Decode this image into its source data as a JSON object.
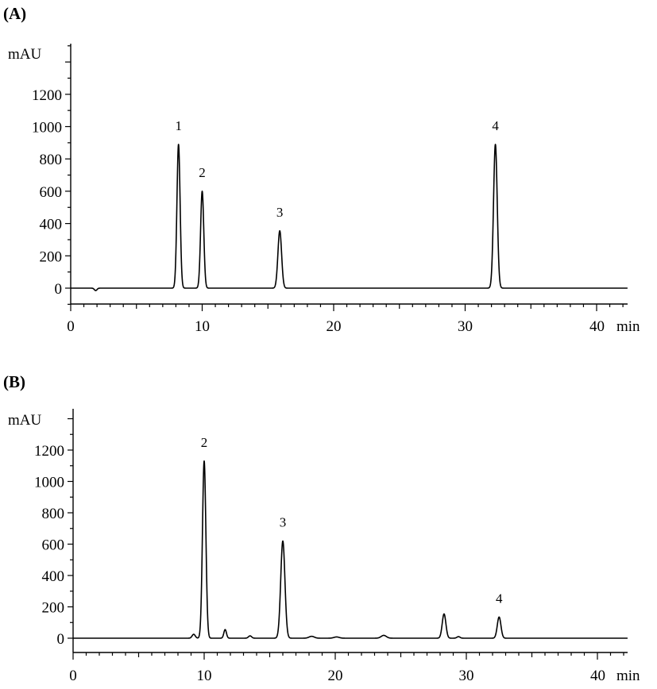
{
  "chart_data": [
    {
      "type": "line",
      "panel_label": "(A)",
      "ylabel": "mAU",
      "xlabel": "min",
      "x_ticks": [
        "0",
        "10",
        "20",
        "30",
        "40"
      ],
      "y_ticks": [
        "0",
        "200",
        "400",
        "600",
        "800",
        "1000",
        "1200"
      ],
      "xlim": [
        0,
        42
      ],
      "ylim": [
        -100,
        1500
      ],
      "baseline": 0,
      "peaks": [
        {
          "label": "1",
          "x": 8.2,
          "y": 890,
          "width": 0.12
        },
        {
          "label": "2",
          "x": 10.0,
          "y": 600,
          "width": 0.12
        },
        {
          "label": "3",
          "x": 15.9,
          "y": 355,
          "width": 0.14
        },
        {
          "label": "4",
          "x": 32.3,
          "y": 890,
          "width": 0.14
        }
      ],
      "minor_peaks": [
        {
          "x": 1.9,
          "y": -15,
          "width": 0.1
        }
      ]
    },
    {
      "type": "line",
      "panel_label": "(B)",
      "ylabel": "mAU",
      "xlabel": "min",
      "x_ticks": [
        "0",
        "10",
        "20",
        "30",
        "40"
      ],
      "y_ticks": [
        "0",
        "200",
        "400",
        "600",
        "800",
        "1000",
        "1200"
      ],
      "xlim": [
        0,
        42
      ],
      "ylim": [
        -100,
        1500
      ],
      "baseline": 0,
      "peaks": [
        {
          "label": "2",
          "x": 10.0,
          "y": 1130,
          "width": 0.13
        },
        {
          "label": "3",
          "x": 16.0,
          "y": 620,
          "width": 0.16
        },
        {
          "label": "4",
          "x": 32.5,
          "y": 135,
          "width": 0.14
        }
      ],
      "minor_peaks": [
        {
          "x": 9.2,
          "y": 25,
          "width": 0.12
        },
        {
          "x": 11.6,
          "y": 55,
          "width": 0.1
        },
        {
          "x": 13.5,
          "y": 15,
          "width": 0.12
        },
        {
          "x": 18.2,
          "y": 12,
          "width": 0.2
        },
        {
          "x": 20.1,
          "y": 8,
          "width": 0.2
        },
        {
          "x": 23.7,
          "y": 18,
          "width": 0.2
        },
        {
          "x": 28.3,
          "y": 155,
          "width": 0.14
        },
        {
          "x": 29.4,
          "y": 10,
          "width": 0.12
        }
      ]
    }
  ]
}
